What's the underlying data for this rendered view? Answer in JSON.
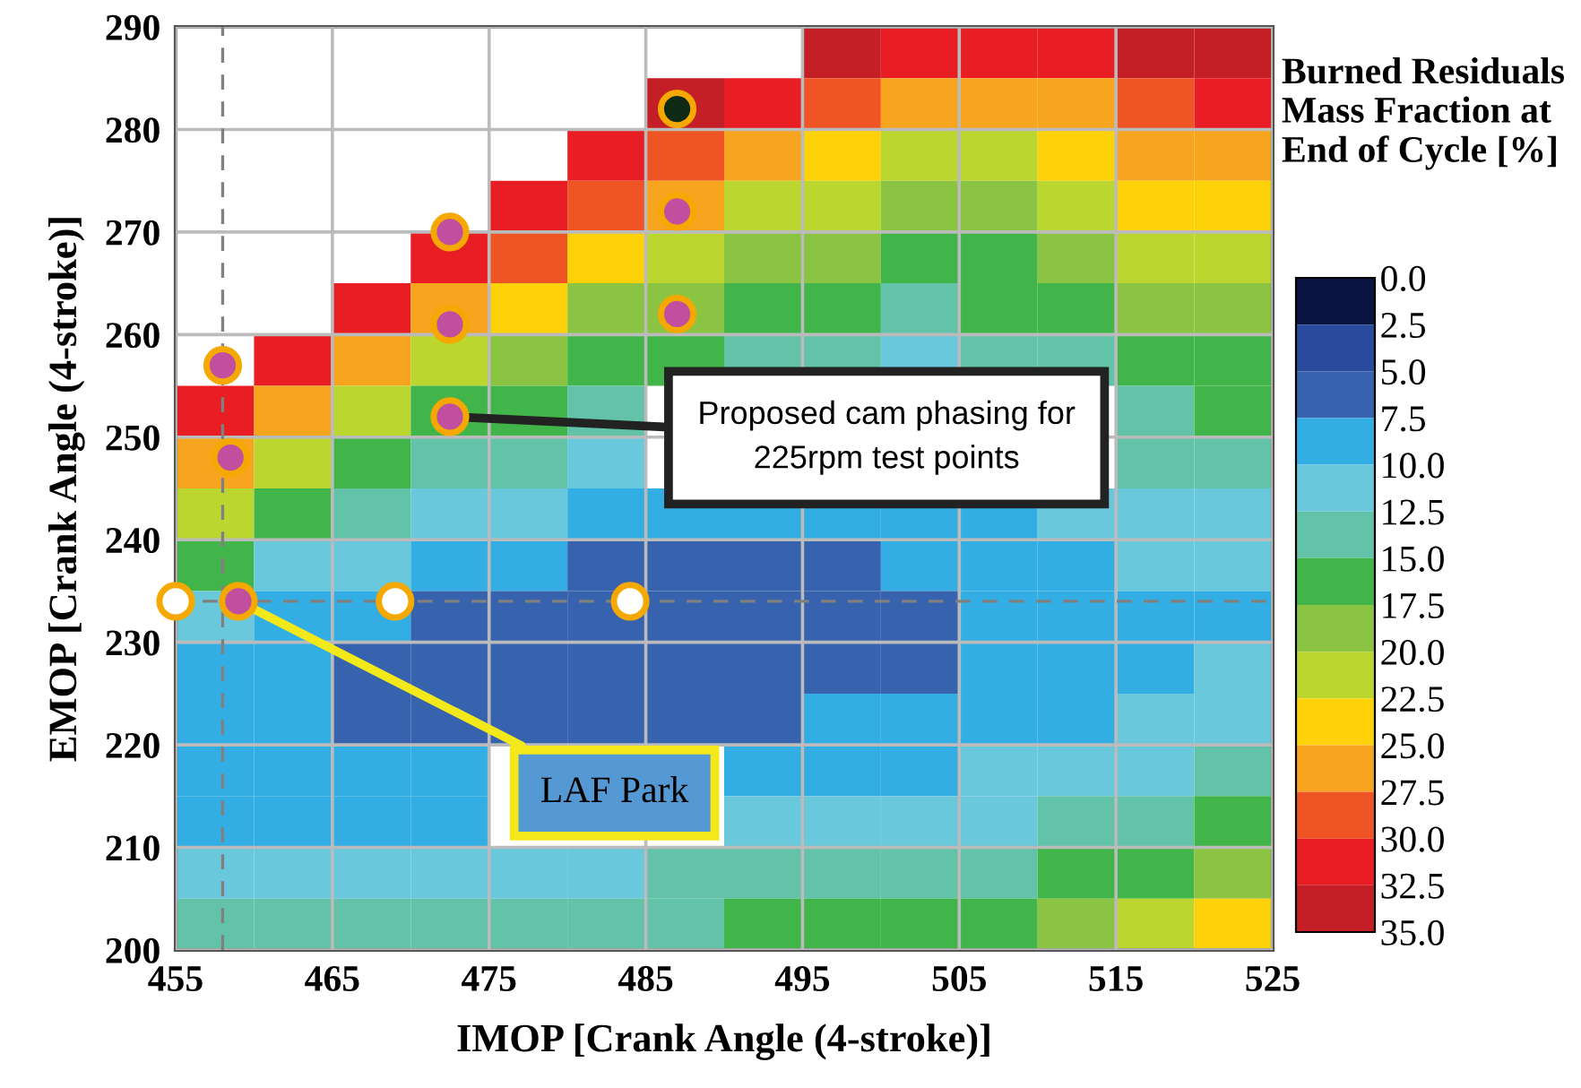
{
  "chart_data": {
    "type": "heatmap",
    "xlabel": "IMOP [Crank Angle (4-stroke)]",
    "ylabel": "EMOP [Crank Angle (4-stroke)]",
    "clabel": "Burned Residuals Mass Fraction at End of Cycle [%]",
    "x": [
      457.5,
      462.5,
      467.5,
      472.5,
      477.5,
      482.5,
      487.5,
      492.5,
      497.5,
      502.5,
      507.5,
      512.5,
      517.5,
      522.5
    ],
    "y": [
      287.5,
      282.5,
      277.5,
      272.5,
      267.5,
      262.5,
      257.5,
      252.5,
      247.5,
      242.5,
      237.5,
      232.5,
      227.5,
      222.5,
      217.5,
      212.5,
      207.5,
      202.5
    ],
    "cells": [
      [
        null,
        null,
        null,
        null,
        null,
        null,
        null,
        null,
        33.75,
        31.25,
        31.25,
        31.25,
        33.75,
        33.75
      ],
      [
        null,
        null,
        null,
        null,
        null,
        null,
        33.75,
        31.25,
        28.75,
        26.25,
        26.25,
        26.25,
        28.75,
        31.25
      ],
      [
        null,
        null,
        null,
        null,
        null,
        31.25,
        28.75,
        26.25,
        23.75,
        21.25,
        21.25,
        23.75,
        26.25,
        26.25
      ],
      [
        null,
        null,
        null,
        null,
        31.25,
        28.75,
        26.25,
        21.25,
        21.25,
        18.75,
        18.75,
        21.25,
        23.75,
        23.75
      ],
      [
        null,
        null,
        null,
        31.25,
        28.75,
        23.75,
        21.25,
        18.75,
        18.75,
        16.25,
        16.25,
        18.75,
        21.25,
        21.25
      ],
      [
        null,
        null,
        31.25,
        26.25,
        23.75,
        18.75,
        18.75,
        16.25,
        16.25,
        13.75,
        16.25,
        16.25,
        18.75,
        18.75
      ],
      [
        null,
        31.25,
        26.25,
        21.25,
        18.75,
        16.25,
        16.25,
        13.75,
        13.75,
        11.25,
        13.75,
        13.75,
        16.25,
        16.25
      ],
      [
        31.25,
        26.25,
        21.25,
        16.25,
        16.25,
        13.75,
        null,
        null,
        null,
        null,
        null,
        null,
        13.75,
        16.25
      ],
      [
        26.25,
        21.25,
        16.25,
        13.75,
        13.75,
        11.25,
        null,
        null,
        null,
        null,
        null,
        null,
        13.75,
        13.75
      ],
      [
        21.25,
        16.25,
        13.75,
        11.25,
        11.25,
        8.75,
        8.75,
        8.75,
        8.75,
        8.75,
        8.75,
        11.25,
        11.25,
        11.25
      ],
      [
        16.25,
        11.25,
        11.25,
        8.75,
        8.75,
        6.25,
        6.25,
        6.25,
        6.25,
        8.75,
        8.75,
        8.75,
        11.25,
        11.25
      ],
      [
        11.25,
        8.75,
        8.75,
        6.25,
        6.25,
        6.25,
        6.25,
        6.25,
        6.25,
        6.25,
        8.75,
        8.75,
        8.75,
        8.75
      ],
      [
        8.75,
        8.75,
        6.25,
        6.25,
        6.25,
        6.25,
        6.25,
        6.25,
        6.25,
        6.25,
        8.75,
        8.75,
        8.75,
        11.25
      ],
      [
        8.75,
        8.75,
        6.25,
        6.25,
        6.25,
        6.25,
        6.25,
        6.25,
        8.75,
        8.75,
        8.75,
        8.75,
        11.25,
        11.25
      ],
      [
        8.75,
        8.75,
        8.75,
        8.75,
        null,
        null,
        null,
        8.75,
        8.75,
        8.75,
        11.25,
        11.25,
        11.25,
        13.75
      ],
      [
        8.75,
        8.75,
        8.75,
        8.75,
        null,
        null,
        null,
        11.25,
        11.25,
        11.25,
        11.25,
        13.75,
        13.75,
        16.25
      ],
      [
        11.25,
        11.25,
        11.25,
        11.25,
        11.25,
        11.25,
        13.75,
        13.75,
        13.75,
        13.75,
        13.75,
        16.25,
        16.25,
        18.75
      ],
      [
        13.75,
        13.75,
        13.75,
        13.75,
        13.75,
        13.75,
        13.75,
        16.25,
        16.25,
        16.25,
        16.25,
        18.75,
        21.25,
        23.75
      ]
    ],
    "colors": [
      "#0a1440",
      "#2a4a9e",
      "#3762ae",
      "#33aee4",
      "#69c8dc",
      "#63c3a8",
      "#41b549",
      "#8bc443",
      "#bcd630",
      "#fdd108",
      "#f7a51e",
      "#ef5424",
      "#e91e25",
      "#c41e26"
    ],
    "clim": [
      0,
      35
    ],
    "cticks": [
      {
        "value": 0,
        "label": "0.0"
      },
      {
        "value": 2.5,
        "label": "2.5"
      },
      {
        "value": 5,
        "label": "5.0"
      },
      {
        "value": 7.5,
        "label": "7.5"
      },
      {
        "value": 10,
        "label": "10.0"
      },
      {
        "value": 12.5,
        "label": "12.5"
      },
      {
        "value": 15,
        "label": "15.0"
      },
      {
        "value": 17.5,
        "label": "17.5"
      },
      {
        "value": 20,
        "label": "20.0"
      },
      {
        "value": 22.5,
        "label": "22.5"
      },
      {
        "value": 25,
        "label": "25.0"
      },
      {
        "value": 27.5,
        "label": "27.5"
      },
      {
        "value": 30,
        "label": "30.0"
      },
      {
        "value": 32.5,
        "label": "32.5"
      },
      {
        "value": 35,
        "label": "35.0"
      }
    ],
    "xlim": [
      455,
      525
    ],
    "xticks": [
      455,
      465,
      475,
      485,
      495,
      505,
      515,
      525
    ],
    "ylim": [
      200,
      290
    ],
    "yticks": [
      200,
      210,
      220,
      230,
      240,
      250,
      260,
      270,
      280,
      290
    ],
    "grid": true,
    "marker": "circle",
    "series": [
      {
        "type": "scatter",
        "color": "#c0509f",
        "x": [
          458,
          458.5,
          472.5,
          472.5,
          472.5,
          459,
          487,
          487
        ],
        "values": [
          257,
          248,
          270,
          261,
          252,
          234,
          272,
          262
        ]
      },
      {
        "type": "scatter",
        "color": "#0f2a14",
        "x": [
          487
        ],
        "values": [
          282
        ]
      },
      {
        "type": "scatter",
        "color": "#ffffff",
        "x": [
          455,
          469,
          484
        ],
        "values": [
          234,
          234,
          234
        ]
      }
    ],
    "ref_lines": [
      {
        "axis": "x",
        "value": 458,
        "color": "#808080",
        "line_style": "dashed"
      },
      {
        "axis": "y",
        "value": 234,
        "color": "#808080",
        "line_style": "dashed"
      }
    ],
    "annotations": [
      {
        "text": "Proposed cam phasing for\n225rpm test points",
        "x": 472.5,
        "y": 252
      },
      {
        "text": "LAF Park",
        "x": 459,
        "y": 234
      }
    ]
  }
}
